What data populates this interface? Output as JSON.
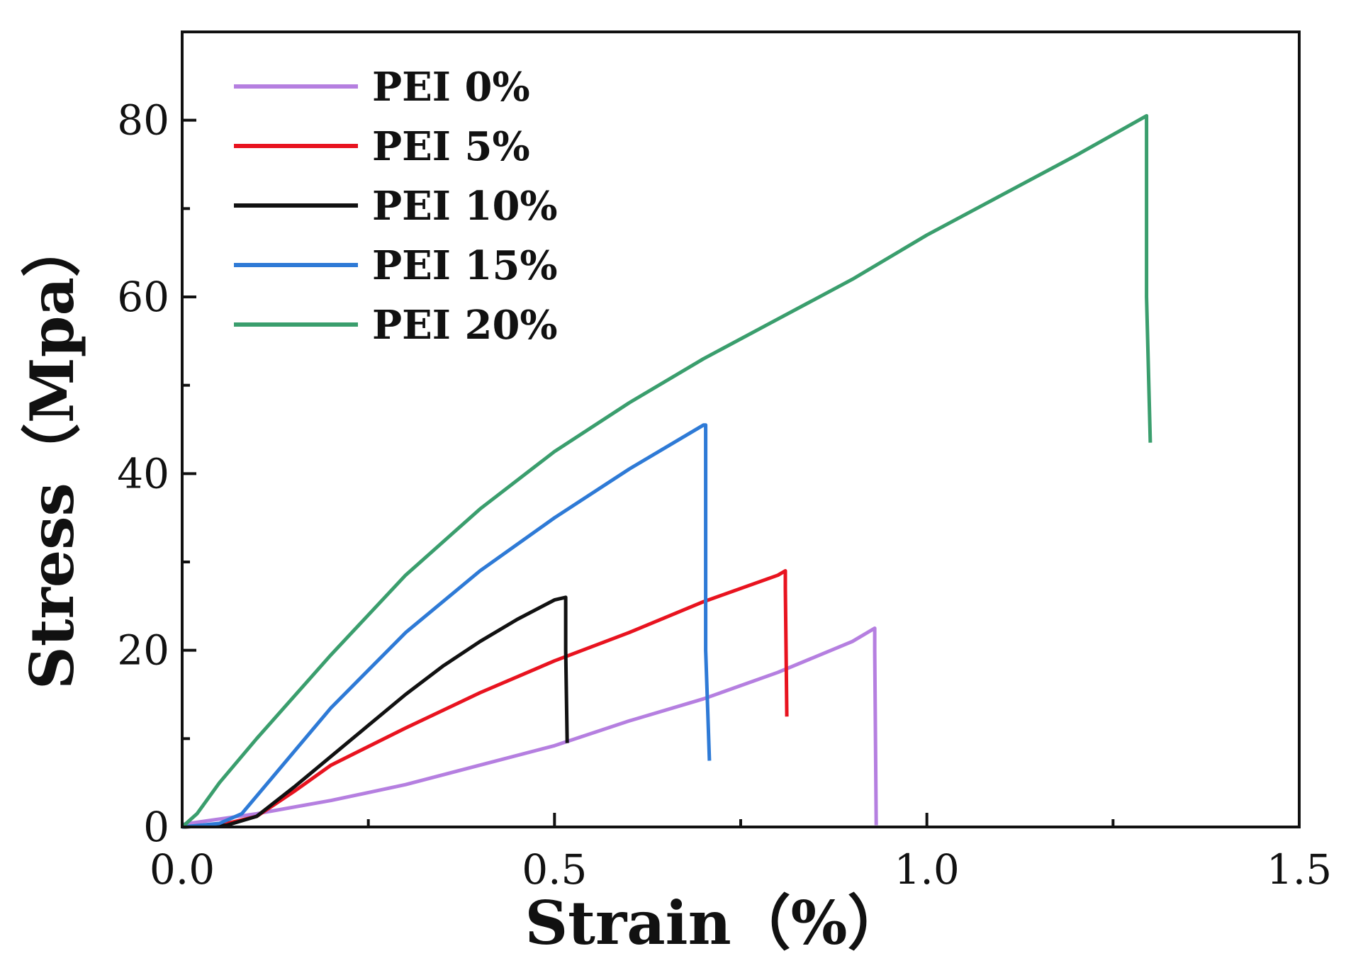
{
  "chart_data": {
    "type": "line",
    "title": "",
    "xlabel": "Strain（%）",
    "ylabel": "Stress（Mpa）",
    "xlim": [
      0,
      1.5
    ],
    "ylim": [
      0,
      90
    ],
    "xticks": [
      0.0,
      0.5,
      1.0,
      1.5
    ],
    "xtick_labels": [
      "0.0",
      "0.5",
      "1.0",
      "1.5"
    ],
    "xminor_ticks": [
      0.25,
      0.75,
      1.25
    ],
    "yticks": [
      0,
      20,
      40,
      60,
      80
    ],
    "ytick_labels": [
      "0",
      "20",
      "40",
      "60",
      "80"
    ],
    "yminor_ticks": [
      10,
      30,
      50,
      70
    ],
    "grid": false,
    "legend_position": "top-left",
    "series": [
      {
        "name": "PEI 0%",
        "color": "#b57fe0",
        "points": [
          [
            0,
            0.3
          ],
          [
            0.1,
            1.5
          ],
          [
            0.2,
            3
          ],
          [
            0.3,
            4.8
          ],
          [
            0.4,
            7
          ],
          [
            0.5,
            9.2
          ],
          [
            0.6,
            12
          ],
          [
            0.7,
            14.5
          ],
          [
            0.8,
            17.5
          ],
          [
            0.9,
            21
          ],
          [
            0.93,
            22.5
          ],
          [
            0.93,
            20
          ],
          [
            0.932,
            0.2
          ]
        ]
      },
      {
        "name": "PEI 5%",
        "color": "#e8131f",
        "points": [
          [
            0,
            0
          ],
          [
            0.05,
            0.2
          ],
          [
            0.1,
            1.2
          ],
          [
            0.15,
            4
          ],
          [
            0.2,
            7
          ],
          [
            0.3,
            11.2
          ],
          [
            0.4,
            15.2
          ],
          [
            0.5,
            18.8
          ],
          [
            0.6,
            22
          ],
          [
            0.7,
            25.5
          ],
          [
            0.8,
            28.5
          ],
          [
            0.81,
            29
          ],
          [
            0.81,
            27
          ],
          [
            0.812,
            12.5
          ]
        ]
      },
      {
        "name": "PEI 10%",
        "color": "#111111",
        "points": [
          [
            0,
            0
          ],
          [
            0.06,
            0.2
          ],
          [
            0.1,
            1.2
          ],
          [
            0.15,
            4.5
          ],
          [
            0.2,
            8
          ],
          [
            0.25,
            11.5
          ],
          [
            0.3,
            15
          ],
          [
            0.35,
            18.2
          ],
          [
            0.4,
            21
          ],
          [
            0.45,
            23.5
          ],
          [
            0.5,
            25.7
          ],
          [
            0.515,
            26
          ],
          [
            0.515,
            20
          ],
          [
            0.517,
            9.5
          ]
        ]
      },
      {
        "name": "PEI 15%",
        "color": "#2e7ad6",
        "points": [
          [
            0,
            0
          ],
          [
            0.05,
            0.4
          ],
          [
            0.08,
            1.5
          ],
          [
            0.1,
            3.5
          ],
          [
            0.15,
            8.5
          ],
          [
            0.2,
            13.5
          ],
          [
            0.3,
            22
          ],
          [
            0.4,
            29
          ],
          [
            0.5,
            35
          ],
          [
            0.6,
            40.5
          ],
          [
            0.7,
            45.5
          ],
          [
            0.703,
            45.5
          ],
          [
            0.703,
            20
          ],
          [
            0.708,
            7.5
          ]
        ]
      },
      {
        "name": "PEI 20%",
        "color": "#3a9e6d",
        "points": [
          [
            0,
            0
          ],
          [
            0.02,
            1.5
          ],
          [
            0.05,
            5
          ],
          [
            0.1,
            10
          ],
          [
            0.2,
            19.5
          ],
          [
            0.3,
            28.5
          ],
          [
            0.4,
            36
          ],
          [
            0.5,
            42.5
          ],
          [
            0.6,
            48
          ],
          [
            0.7,
            53
          ],
          [
            0.8,
            57.5
          ],
          [
            0.9,
            62
          ],
          [
            1.0,
            67
          ],
          [
            1.1,
            71.5
          ],
          [
            1.2,
            76
          ],
          [
            1.295,
            80.5
          ],
          [
            1.295,
            60
          ],
          [
            1.3,
            43.5
          ]
        ]
      }
    ]
  }
}
